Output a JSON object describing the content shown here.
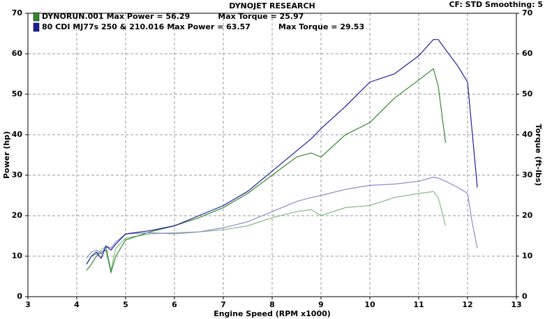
{
  "chart_data": {
    "type": "line",
    "title": "DYNOJET RESEARCH",
    "subtitle": "CF: STD   Smoothing: 5",
    "x_label": "Engine Speed (RPM x1000)",
    "y_label": "Power (hp)",
    "y2_label": "Torque (ft-lbs)",
    "xlim": [
      3,
      13
    ],
    "xticks": [
      3,
      4,
      5,
      6,
      7,
      8,
      9,
      10,
      11,
      12,
      13
    ],
    "ylim": [
      0,
      70
    ],
    "yticks": [
      0,
      10,
      20,
      30,
      40,
      50,
      60,
      70
    ],
    "y2lim": [
      0,
      70
    ],
    "y2ticks": [
      0,
      10,
      20,
      30,
      40,
      50,
      60,
      70
    ],
    "grid": true,
    "legend": "top-left",
    "x": [
      4.2,
      4.3,
      4.4,
      4.5,
      4.6,
      4.7,
      4.8,
      5,
      5.5,
      6,
      6.5,
      7,
      7.5,
      8,
      8.5,
      8.8,
      9,
      9.5,
      10,
      10.5,
      11,
      11.3,
      11.4,
      11.55,
      11.8,
      12,
      12.1,
      12.2
    ],
    "series": [
      {
        "name": "DYNORUN.001",
        "max_power": "Max Power = 56.29",
        "max_torque": "Max Torque = 25.97",
        "color": "#2f8a2f",
        "torque_color": "#86b886",
        "values": [
          6.5,
          8,
          10,
          11,
          11.5,
          6,
          10,
          14,
          16,
          17.5,
          19.5,
          22,
          25.5,
          30,
          34.5,
          35.5,
          34.5,
          40,
          43,
          49,
          53.5,
          56.29,
          52,
          38,
          null,
          null,
          null,
          null
        ],
        "torque_values": [
          8,
          10,
          10.5,
          11.5,
          12.5,
          6.5,
          12,
          14.5,
          15.5,
          15.8,
          16,
          16.5,
          17.5,
          19.5,
          21,
          21.5,
          20,
          22,
          22.5,
          24.5,
          25.5,
          25.97,
          24.5,
          17.5,
          null,
          null,
          null,
          null
        ]
      },
      {
        "name": "80 CDI MJ77s 250 & 210.016",
        "max_power": "Max Power = 63.57",
        "max_torque": "Max Torque = 29.53",
        "color": "#1c1c9a",
        "torque_color": "#8a8ad0",
        "values": [
          8,
          10,
          11,
          9.5,
          12.5,
          11.5,
          13,
          15.5,
          16.3,
          17.5,
          20,
          22.5,
          26,
          31,
          36,
          39,
          41.5,
          47,
          53,
          55,
          59.5,
          63.5,
          63.5,
          61,
          57,
          53,
          40,
          27
        ],
        "torque_values": [
          9.5,
          11,
          11.5,
          10.5,
          12.5,
          12,
          13.5,
          15.5,
          15.8,
          15.5,
          16,
          17,
          18.5,
          21,
          23.5,
          24.5,
          25,
          26.5,
          27.5,
          27.8,
          28.5,
          29.5,
          29.3,
          28.5,
          27,
          25.5,
          18,
          12
        ]
      }
    ]
  }
}
